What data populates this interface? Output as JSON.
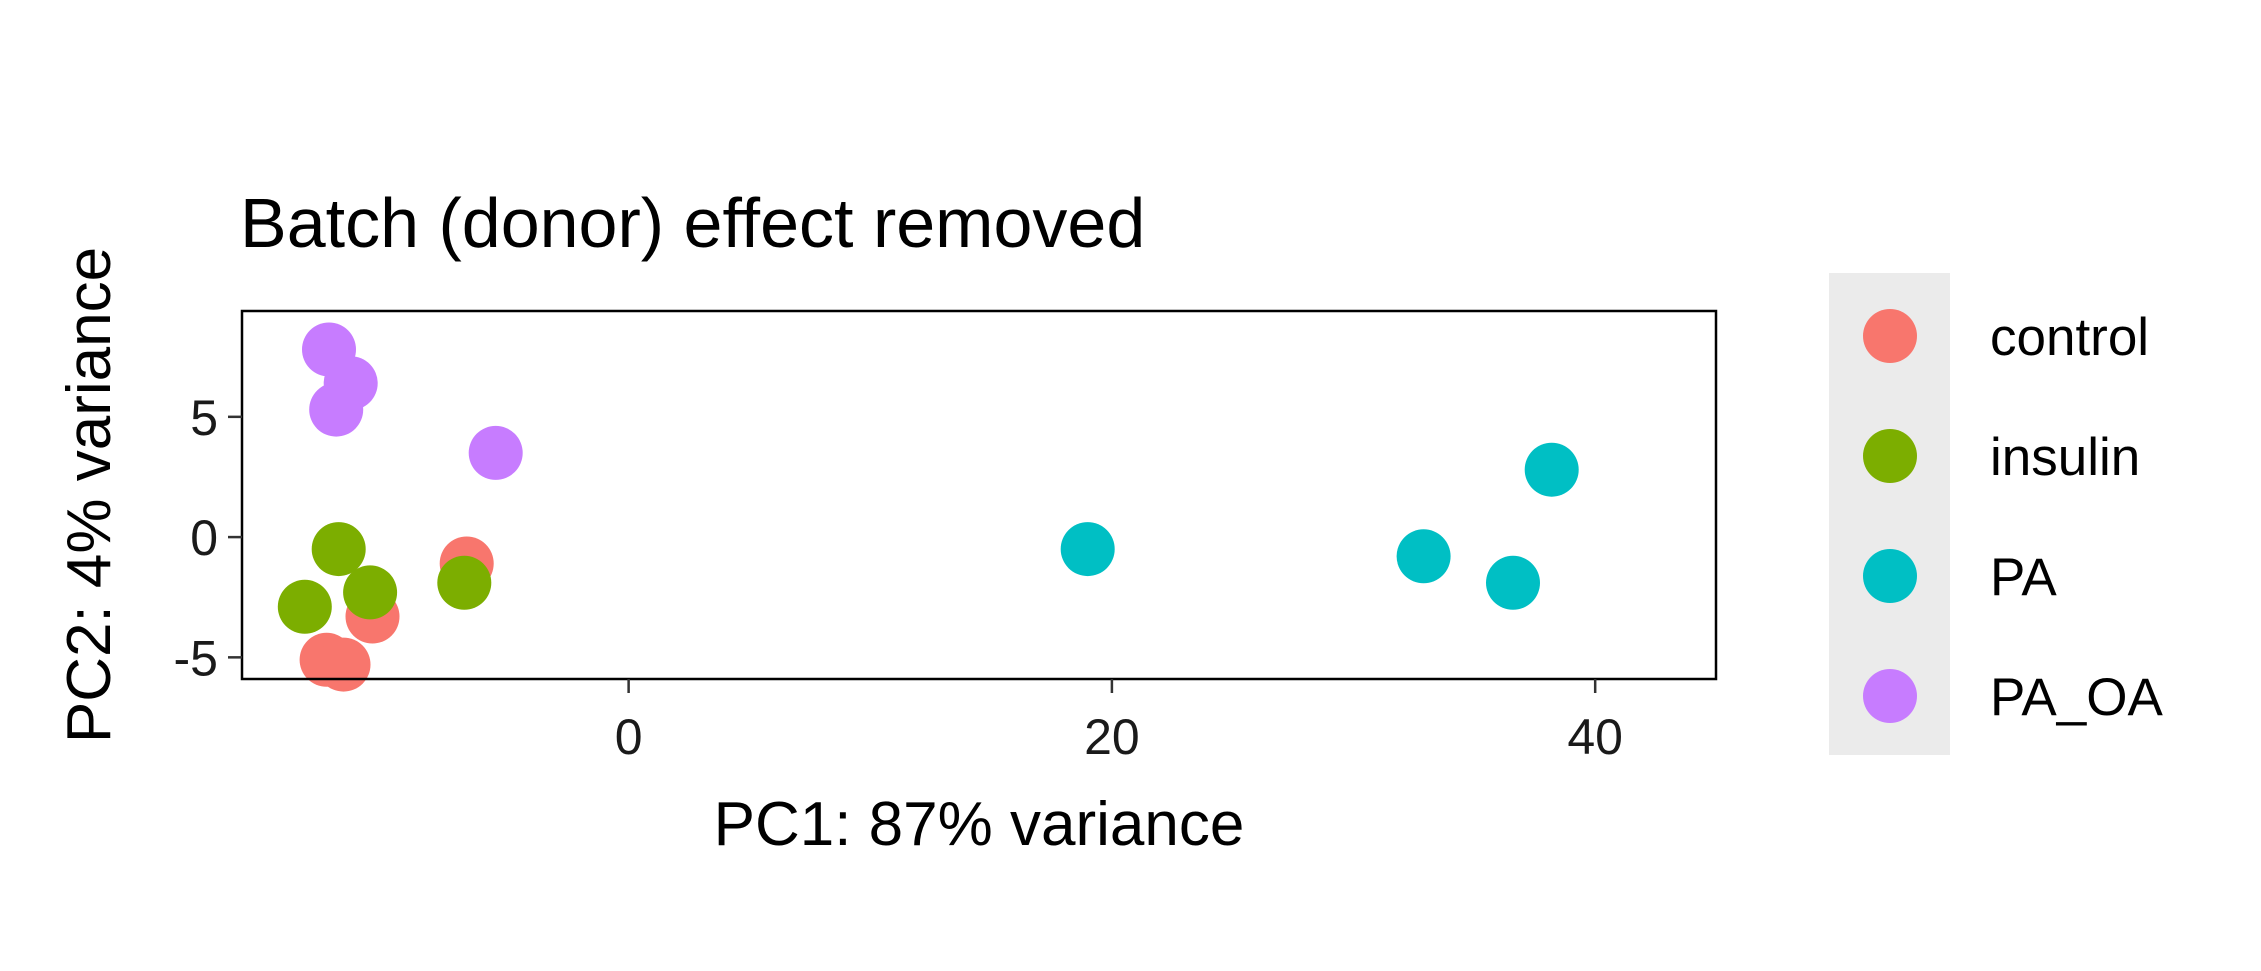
{
  "chart_data": {
    "type": "scatter",
    "title": "Batch (donor) effect removed",
    "xlabel": "PC1: 87% variance",
    "ylabel": "PC2: 4% variance",
    "xlim": [
      -16,
      45
    ],
    "ylim": [
      -5.9,
      9.4
    ],
    "xticks": [
      0,
      20,
      40
    ],
    "yticks": [
      -5,
      0,
      5
    ],
    "grid": false,
    "legend_position": "right",
    "series": [
      {
        "name": "control",
        "color": "#F8766D",
        "points": [
          [
            -6.7,
            -1.1
          ],
          [
            -10.6,
            -3.3
          ],
          [
            -12.5,
            -5.1
          ],
          [
            -11.8,
            -5.3
          ]
        ]
      },
      {
        "name": "insulin",
        "color": "#7CAE00",
        "points": [
          [
            -12.0,
            -0.5
          ],
          [
            -10.7,
            -2.3
          ],
          [
            -13.4,
            -2.9
          ],
          [
            -6.8,
            -1.9
          ]
        ]
      },
      {
        "name": "PA",
        "color": "#00BFC4",
        "points": [
          [
            19.0,
            -0.5
          ],
          [
            32.9,
            -0.8
          ],
          [
            36.6,
            -1.9
          ],
          [
            38.2,
            2.8
          ]
        ]
      },
      {
        "name": "PA_OA",
        "color": "#C77CFF",
        "points": [
          [
            -12.4,
            7.8
          ],
          [
            -11.5,
            6.4
          ],
          [
            -12.1,
            5.3
          ],
          [
            -5.5,
            3.5
          ]
        ]
      }
    ]
  }
}
